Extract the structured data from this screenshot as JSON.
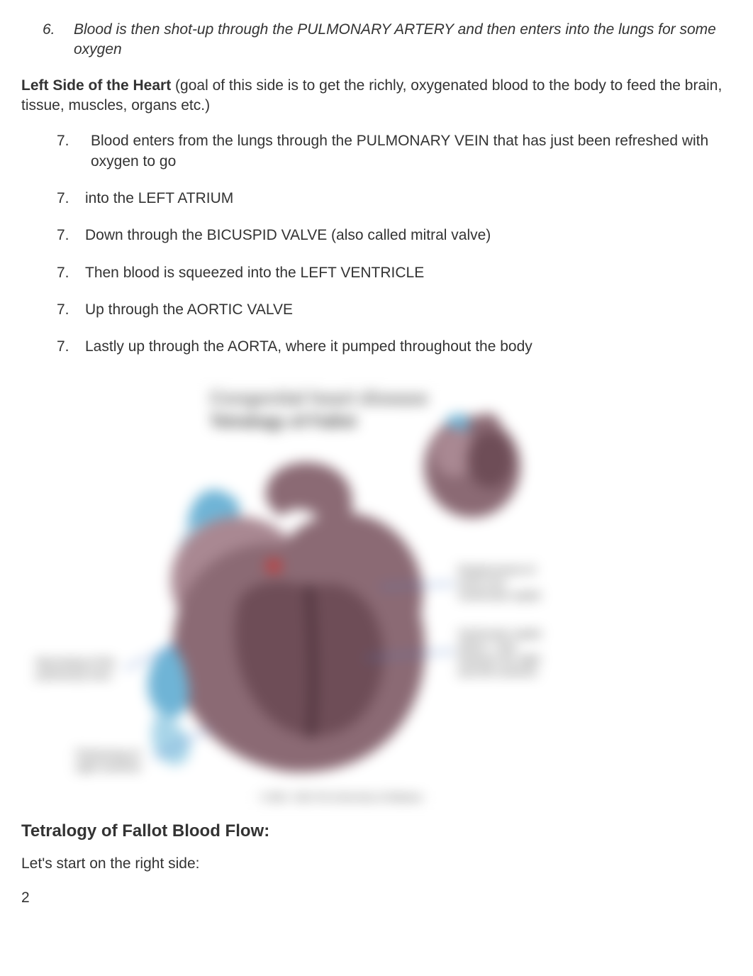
{
  "italicStep": {
    "num": "6.",
    "text": "Blood is then shot-up through the PULMONARY ARTERY and then enters into the lungs for some oxygen"
  },
  "leftSide": {
    "boldLead": "Left Side of the Heart",
    "rest": " (goal of this side is to get the richly, oxygenated blood to the body to feed the brain, tissue, muscles, organs etc.)"
  },
  "steps": [
    {
      "marker": "7.",
      "text": "Blood enters from the lungs through the PULMONARY VEIN that has just been refreshed with oxygen to go",
      "extraIndent": true
    },
    {
      "marker": "7.",
      "text": "into the LEFT ATRIUM",
      "extraIndent": false
    },
    {
      "marker": "7.",
      "text": "Down through the BICUSPID VALVE (also called mitral valve)",
      "extraIndent": false
    },
    {
      "marker": "7.",
      "text": "Then blood is squeezed into the LEFT VENTRICLE",
      "extraIndent": false
    },
    {
      "marker": "7.",
      "text": "Up through the AORTIC VALVE",
      "extraIndent": false
    },
    {
      "marker": "7.",
      "text": "Lastly up through the AORTA, where it pumped throughout the body",
      "extraIndent": false
    }
  ],
  "diagram": {
    "title1": "Congenital heart disease",
    "title2": "Tetralogy of Fallot",
    "colors": {
      "heartMain": "#8b6a74",
      "heartDark": "#6e4d57",
      "heartLight": "#a98892",
      "vesselBlue": "#6fb4d6",
      "vesselBlueLight": "#a7d4e8",
      "labelText": "#545454",
      "titleText": "#6b6b6b",
      "titleDark": "#3a3a3a",
      "bg": "#ffffff",
      "annoLine": "#4472c4"
    },
    "labels": {
      "rLabel1a": "Narrowing of the",
      "rLabel1b": "pulmonary tract",
      "rLabel2a": "Thickening of",
      "rLabel2b": "right ventricle",
      "lLabel1a": "Displacement of",
      "lLabel1b": "aorta over",
      "lLabel1c": "ventricular septal",
      "lLabel2a": "Ventricular septal",
      "lLabel2b": "defect - hole",
      "lLabel2c": "between the right",
      "lLabel2d": "and left ventricle",
      "credit": "© 2010 - 2011 The University of Alabama"
    }
  },
  "sectionHeading": "Tetralogy of Fallot Blood Flow:",
  "letsStart": "Let's start on the right side:",
  "pageNumber": "2"
}
